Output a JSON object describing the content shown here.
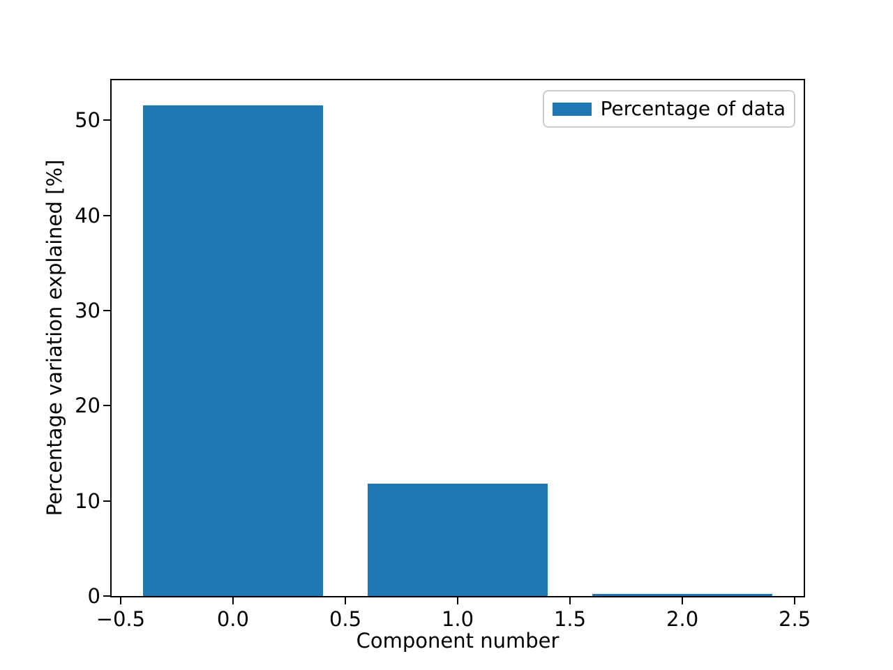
{
  "figure": {
    "background": "#ffffff",
    "bar_color": "#1f77b4",
    "spine_color": "#000000",
    "legend_border_color": "#cccccc"
  },
  "chart_data": {
    "type": "bar",
    "title": "",
    "xlabel": "Component number",
    "ylabel": "Percentage variation explained [%]",
    "x": [
      0,
      1,
      2
    ],
    "values": [
      51.6,
      11.8,
      0.2
    ],
    "bar_width": 0.8,
    "xlim": [
      -0.54,
      2.54
    ],
    "ylim": [
      0,
      54.2
    ],
    "xticks": [
      -0.5,
      0,
      0.5,
      1,
      1.5,
      2,
      2.5
    ],
    "xtick_labels": [
      "−0.5",
      "0.0",
      "0.5",
      "1.0",
      "1.5",
      "2.0",
      "2.5"
    ],
    "yticks": [
      0,
      10,
      20,
      30,
      40,
      50
    ],
    "ytick_labels": [
      "0",
      "10",
      "20",
      "30",
      "40",
      "50"
    ],
    "legend": {
      "label": "Percentage of data",
      "position": "upper right"
    },
    "grid": false
  }
}
